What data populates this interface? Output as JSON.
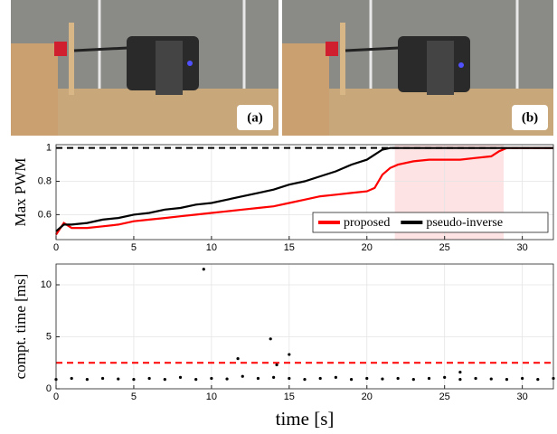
{
  "photos": {
    "labels": [
      "(a)",
      "(b)"
    ]
  },
  "chart_data": [
    {
      "type": "line",
      "ylabel": "Max PWM",
      "x": [
        0,
        0.5,
        1,
        2,
        3,
        4,
        5,
        6,
        7,
        8,
        9,
        10,
        11,
        12,
        13,
        14,
        15,
        16,
        17,
        18,
        19,
        20,
        20.5,
        21,
        21.5,
        22,
        23,
        24,
        25,
        26,
        27,
        28,
        28.5,
        29,
        30,
        31,
        32
      ],
      "series": [
        {
          "name": "proposed",
          "color": "#ff0000",
          "values": [
            0.48,
            0.55,
            0.52,
            0.52,
            0.53,
            0.54,
            0.56,
            0.57,
            0.58,
            0.59,
            0.6,
            0.61,
            0.62,
            0.63,
            0.64,
            0.65,
            0.67,
            0.69,
            0.71,
            0.72,
            0.73,
            0.74,
            0.76,
            0.84,
            0.88,
            0.9,
            0.92,
            0.93,
            0.93,
            0.93,
            0.94,
            0.95,
            0.98,
            1,
            1,
            1,
            1
          ]
        },
        {
          "name": "pseudo-inverse",
          "color": "#000000",
          "values": [
            0.5,
            0.54,
            0.54,
            0.55,
            0.57,
            0.58,
            0.6,
            0.61,
            0.63,
            0.64,
            0.66,
            0.67,
            0.69,
            0.71,
            0.73,
            0.75,
            0.78,
            0.8,
            0.83,
            0.86,
            0.9,
            0.93,
            0.96,
            0.99,
            1,
            1,
            1,
            1,
            1,
            1,
            1,
            1,
            1,
            1,
            1,
            1,
            1
          ]
        }
      ],
      "reference_line": {
        "value": 1,
        "color": "#000000"
      },
      "shaded_region": {
        "x": [
          21.8,
          28.8
        ],
        "color": "#fde3e3"
      },
      "xlim": [
        0,
        32
      ],
      "xticks": [
        0,
        5,
        10,
        15,
        20,
        25,
        30
      ],
      "ylim": [
        0.45,
        1.02
      ],
      "yticks": [
        0.6,
        0.8,
        1
      ],
      "grid": true,
      "legend": "lower right"
    },
    {
      "type": "scatter",
      "ylabel": "compt. time [ms]",
      "xlabel": "time [s]",
      "x": [
        0,
        1,
        2,
        3,
        4,
        5,
        6,
        7,
        8,
        9,
        10,
        11,
        12,
        13,
        14,
        15,
        16,
        17,
        18,
        19,
        20,
        21,
        22,
        23,
        24,
        25,
        26,
        27,
        28,
        29,
        30,
        31,
        32,
        9.5,
        11.7,
        13.8,
        14.2,
        15,
        26
      ],
      "values": [
        0.9,
        1.0,
        0.9,
        1.0,
        0.95,
        0.9,
        1.0,
        0.9,
        1.1,
        0.9,
        1.0,
        0.95,
        1.2,
        1.0,
        1.1,
        1.0,
        0.9,
        1.0,
        1.1,
        0.9,
        1.0,
        0.95,
        1.0,
        0.9,
        1.0,
        1.1,
        0.9,
        1.0,
        0.95,
        0.9,
        1.0,
        0.9,
        1.0,
        11.5,
        2.9,
        4.8,
        2.3,
        3.3,
        1.6
      ],
      "color": "#000000",
      "reference_line": {
        "value": 2.5,
        "color": "#ff0000"
      },
      "xlim": [
        0,
        32
      ],
      "xticks": [
        0,
        5,
        10,
        15,
        20,
        25,
        30
      ],
      "ylim": [
        0,
        12
      ],
      "yticks": [
        0,
        5,
        10
      ],
      "grid": true
    }
  ]
}
